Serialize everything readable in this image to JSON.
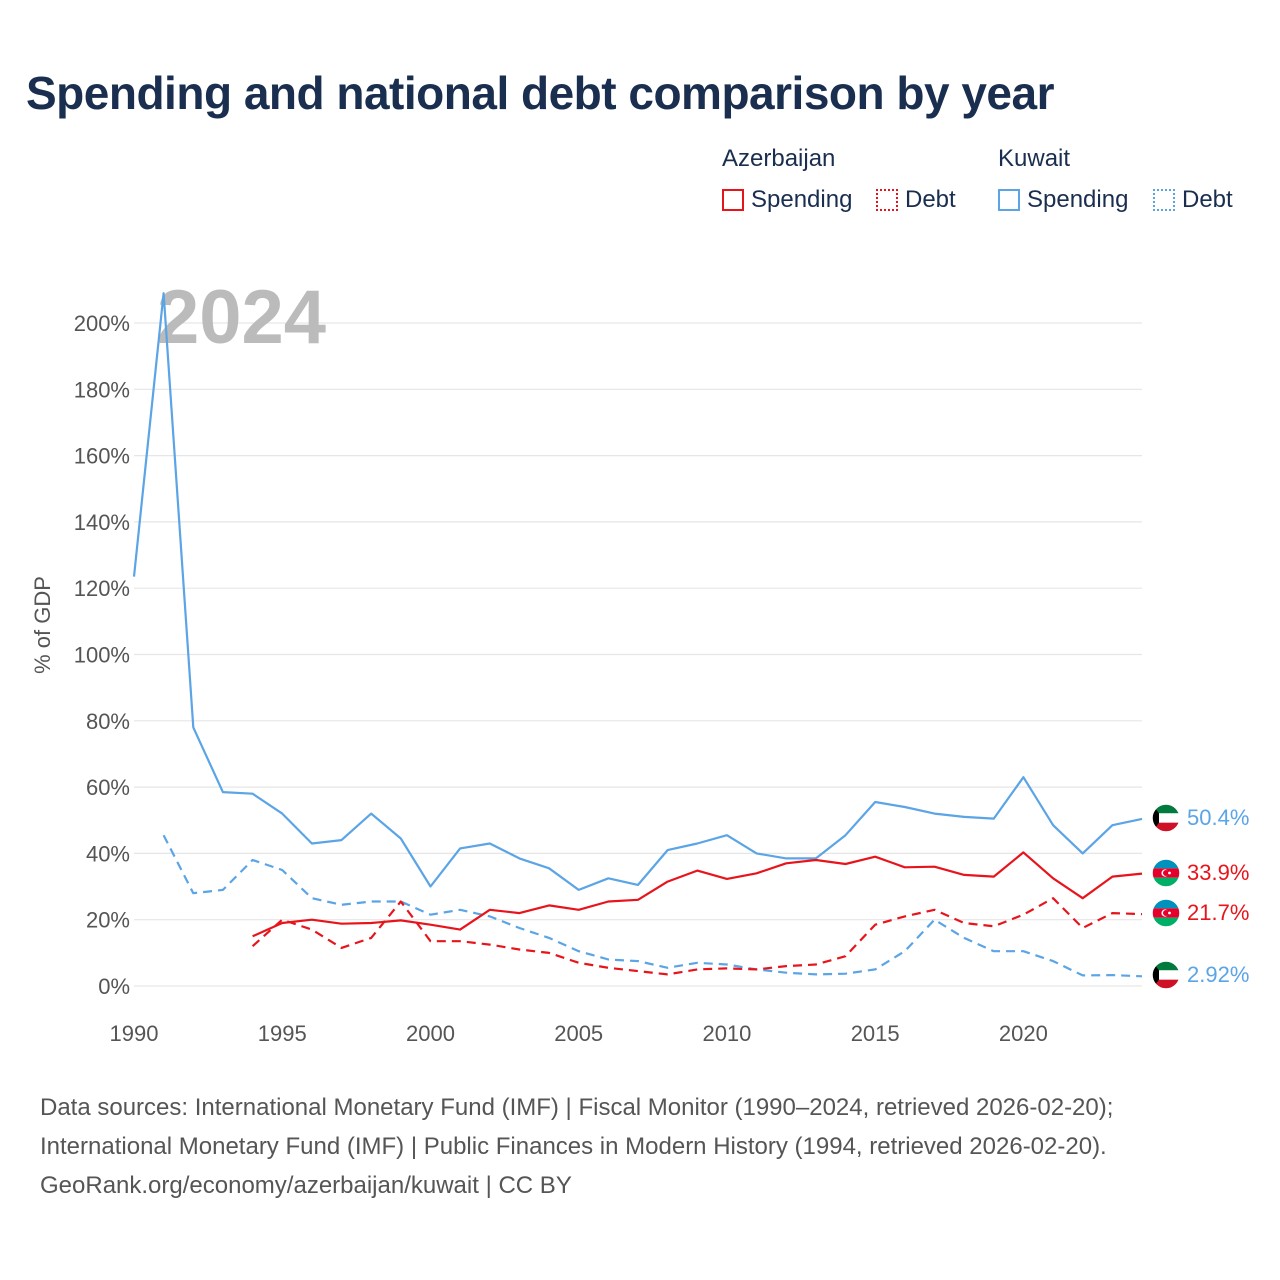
{
  "title": "Spending and national debt comparison by year",
  "legend": {
    "groups": [
      {
        "country": "Azerbaijan",
        "color": "#e8141c",
        "items": [
          "Spending",
          "Debt"
        ]
      },
      {
        "country": "Kuwait",
        "color": "#5ba4e6",
        "items": [
          "Spending",
          "Debt"
        ]
      }
    ]
  },
  "watermark_year": "2024",
  "end_labels": {
    "kuwait_spending": "50.4%",
    "azerbaijan_spending": "33.9%",
    "azerbaijan_debt": "21.7%",
    "kuwait_debt": "2.92%"
  },
  "sources": [
    "Data sources: International Monetary Fund (IMF) | Fiscal Monitor (1990–2024, retrieved 2026-02-20);",
    "International Monetary Fund (IMF) | Public Finances in Modern History (1994, retrieved 2026-02-20).",
    "GeoRank.org/economy/azerbaijan/kuwait | CC BY"
  ],
  "chart_data": {
    "type": "line",
    "title": "Spending and national debt comparison by year",
    "xlabel": "",
    "ylabel": "% of GDP",
    "xlim": [
      1990,
      2024
    ],
    "ylim": [
      0,
      210
    ],
    "x_ticks": [
      1990,
      1995,
      2000,
      2005,
      2010,
      2015,
      2020
    ],
    "y_ticks": [
      0,
      20,
      40,
      60,
      80,
      100,
      120,
      140,
      160,
      180,
      200
    ],
    "y_tick_labels": [
      "0%",
      "20%",
      "40%",
      "60%",
      "80%",
      "100%",
      "120%",
      "140%",
      "160%",
      "180%",
      "200%"
    ],
    "series": [
      {
        "name": "Kuwait Spending",
        "country": "Kuwait",
        "measure": "Spending",
        "color": "#5ba4e6",
        "dash": "solid",
        "x": [
          1990,
          1991,
          1992,
          1993,
          1994,
          1995,
          1996,
          1997,
          1998,
          1999,
          2000,
          2001,
          2002,
          2003,
          2004,
          2005,
          2006,
          2007,
          2008,
          2009,
          2010,
          2011,
          2012,
          2013,
          2014,
          2015,
          2016,
          2017,
          2018,
          2019,
          2020,
          2021,
          2022,
          2023,
          2024
        ],
        "values": [
          123.5,
          209,
          78,
          58.5,
          58,
          52,
          43,
          44,
          52,
          44.5,
          30,
          41.5,
          43,
          38.5,
          35.5,
          29,
          32.5,
          30.5,
          41,
          43,
          45.5,
          40,
          38.5,
          38.5,
          45.5,
          55.5,
          54,
          52,
          51,
          50.5,
          63,
          48.5,
          40,
          48.5,
          50.4
        ]
      },
      {
        "name": "Kuwait Debt",
        "country": "Kuwait",
        "measure": "Debt",
        "color": "#5ba4e6",
        "dash": "dashed",
        "x": [
          1991,
          1992,
          1993,
          1994,
          1995,
          1996,
          1997,
          1998,
          1999,
          2000,
          2001,
          2002,
          2003,
          2004,
          2005,
          2006,
          2007,
          2008,
          2009,
          2010,
          2011,
          2012,
          2013,
          2014,
          2015,
          2016,
          2017,
          2018,
          2019,
          2020,
          2021,
          2022,
          2023,
          2024
        ],
        "values": [
          45.5,
          28,
          29,
          38,
          35,
          26.5,
          24.5,
          25.5,
          25.5,
          21.5,
          23,
          21,
          17.5,
          14.5,
          10.5,
          8,
          7.5,
          5.5,
          7,
          6.5,
          5,
          4,
          3.5,
          3.7,
          5,
          10.5,
          20,
          14.5,
          10.5,
          10.5,
          7.5,
          3.2,
          3.3,
          2.92
        ]
      },
      {
        "name": "Azerbaijan Spending",
        "country": "Azerbaijan",
        "measure": "Spending",
        "color": "#e8141c",
        "dash": "solid",
        "x": [
          1994,
          1995,
          1996,
          1997,
          1998,
          1999,
          2000,
          2001,
          2002,
          2003,
          2004,
          2005,
          2006,
          2007,
          2008,
          2009,
          2010,
          2011,
          2012,
          2013,
          2014,
          2015,
          2016,
          2017,
          2018,
          2019,
          2020,
          2021,
          2022,
          2023,
          2024
        ],
        "values": [
          15,
          19,
          20,
          18.8,
          19,
          19.8,
          18.5,
          17,
          23,
          22,
          24.3,
          23,
          25.5,
          26,
          31.5,
          34.8,
          32.3,
          34,
          37,
          38,
          36.8,
          39,
          35.8,
          36,
          33.5,
          33,
          40.3,
          32.5,
          26.5,
          33,
          33.9
        ]
      },
      {
        "name": "Azerbaijan Debt",
        "country": "Azerbaijan",
        "measure": "Debt",
        "color": "#e8141c",
        "dash": "dashed",
        "x": [
          1994,
          1995,
          1996,
          1997,
          1998,
          1999,
          2000,
          2001,
          2002,
          2003,
          2004,
          2005,
          2006,
          2007,
          2008,
          2009,
          2010,
          2011,
          2012,
          2013,
          2014,
          2015,
          2016,
          2017,
          2018,
          2019,
          2020,
          2021,
          2022,
          2023,
          2024
        ],
        "values": [
          12,
          20,
          17,
          11.5,
          14.5,
          25.5,
          13.5,
          13.5,
          12.5,
          11,
          10,
          7,
          5.5,
          4.5,
          3.5,
          5,
          5.3,
          5,
          6,
          6.5,
          9,
          18.5,
          21,
          23,
          19,
          18,
          21.5,
          26.5,
          17.5,
          22,
          21.7
        ]
      }
    ]
  }
}
